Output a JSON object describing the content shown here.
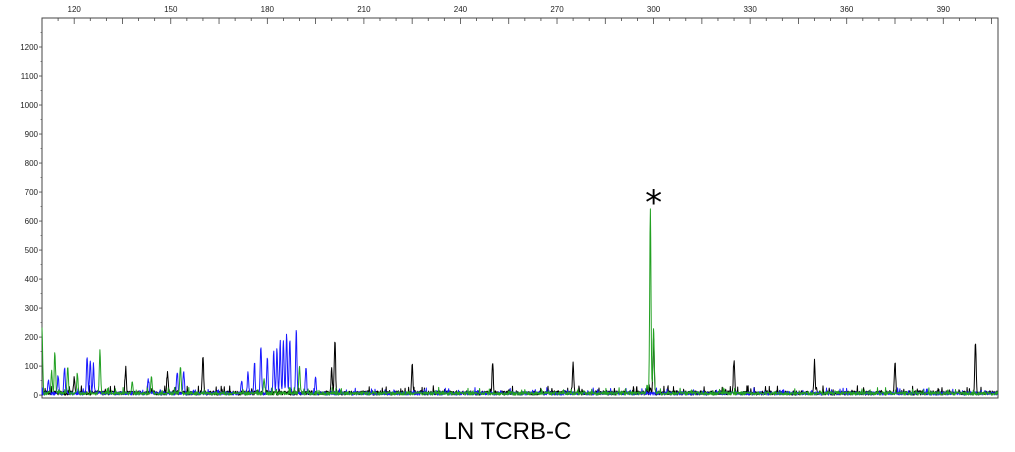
{
  "caption": "LN TCRB-C",
  "chart_data": {
    "type": "line",
    "title": "",
    "xlabel": "",
    "ylabel": "",
    "xlim": [
      110,
      407
    ],
    "ylim": [
      -10,
      1300
    ],
    "x_ticks": [
      120,
      150,
      180,
      210,
      240,
      270,
      300,
      330,
      360,
      390
    ],
    "y_ticks": [
      0,
      100,
      200,
      300,
      400,
      500,
      600,
      700,
      800,
      900,
      1000,
      1100,
      1200
    ],
    "grid": false,
    "annotation": {
      "text": "*",
      "x": 300,
      "y": 700
    },
    "colors": {
      "blue": "#1a1aff",
      "green": "#22a022",
      "black": "#000000"
    },
    "series": [
      {
        "color": "#000000",
        "peaks": [
          [
            120,
            50
          ],
          [
            136,
            75
          ],
          [
            149,
            70
          ],
          [
            160,
            130
          ],
          [
            200,
            80
          ],
          [
            201,
            185
          ],
          [
            225,
            100
          ],
          [
            250,
            100
          ],
          [
            275,
            100
          ],
          [
            299,
            20
          ],
          [
            300,
            200
          ],
          [
            325,
            110
          ],
          [
            350,
            100
          ],
          [
            375,
            105
          ],
          [
            400,
            172
          ]
        ],
        "noise": 15
      },
      {
        "color": "#1a1aff",
        "peaks": [
          [
            112,
            50
          ],
          [
            115,
            60
          ],
          [
            117,
            90
          ],
          [
            124,
            130
          ],
          [
            125,
            110
          ],
          [
            126,
            95
          ],
          [
            143,
            45
          ],
          [
            152,
            75
          ],
          [
            154,
            80
          ],
          [
            172,
            45
          ],
          [
            174,
            70
          ],
          [
            176,
            100
          ],
          [
            178,
            165
          ],
          [
            180,
            120
          ],
          [
            182,
            140
          ],
          [
            183,
            155
          ],
          [
            184,
            170
          ],
          [
            185,
            180
          ],
          [
            186,
            200
          ],
          [
            187,
            190
          ],
          [
            189,
            220
          ],
          [
            192,
            90
          ],
          [
            195,
            60
          ]
        ],
        "noise": 12
      },
      {
        "color": "#22a022",
        "peaks": [
          [
            110,
            220
          ],
          [
            113,
            80
          ],
          [
            114,
            145
          ],
          [
            118,
            90
          ],
          [
            121,
            70
          ],
          [
            128,
            150
          ],
          [
            138,
            40
          ],
          [
            144,
            55
          ],
          [
            153,
            90
          ],
          [
            179,
            50
          ],
          [
            190,
            100
          ],
          [
            298,
            30
          ],
          [
            299,
            640
          ],
          [
            300,
            230
          ]
        ],
        "noise": 12
      }
    ]
  }
}
